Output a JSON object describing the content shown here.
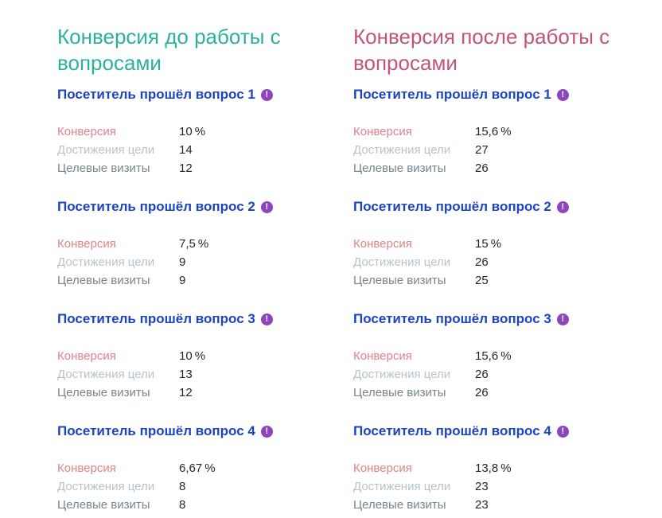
{
  "colors": {
    "before_title": "#2bb09c",
    "after_title": "#c2537d",
    "question_header_blue": "#1b44c2",
    "important_icon_purple": "#8d44bd",
    "conversion_label": "#de838b",
    "goals_label": "#b6c3cd",
    "visits_label": "#76858f",
    "value_text": "#262626",
    "background": "#ffffff"
  },
  "icon": {
    "name": "important-icon",
    "glyph": "!"
  },
  "row_labels": {
    "conversion": "Конверсия",
    "goals": "Достижения цели",
    "visits": "Целевые визиты"
  },
  "columns": [
    {
      "title": "Конверсия до работы с вопросами",
      "blocks": [
        {
          "header": "Посетитель прошёл вопрос 1",
          "conversion": "10 %",
          "goals": "14",
          "visits": "12"
        },
        {
          "header": "Посетитель прошёл вопрос 2",
          "conversion": "7,5 %",
          "goals": "9",
          "visits": "9"
        },
        {
          "header": "Посетитель прошёл вопрос 3",
          "conversion": "10 %",
          "goals": "13",
          "visits": "12"
        },
        {
          "header": "Посетитель прошёл вопрос 4",
          "conversion": "6,67 %",
          "goals": "8",
          "visits": "8"
        }
      ]
    },
    {
      "title": "Конверсия после работы с вопросами",
      "blocks": [
        {
          "header": "Посетитель прошёл вопрос 1",
          "conversion": "15,6 %",
          "goals": "27",
          "visits": "26"
        },
        {
          "header": "Посетитель прошёл вопрос 2",
          "conversion": "15 %",
          "goals": "26",
          "visits": "25"
        },
        {
          "header": "Посетитель прошёл вопрос 3",
          "conversion": "15,6 %",
          "goals": "26",
          "visits": "26"
        },
        {
          "header": "Посетитель прошёл вопрос 4",
          "conversion": "13,8 %",
          "goals": "23",
          "visits": "23"
        }
      ]
    }
  ]
}
